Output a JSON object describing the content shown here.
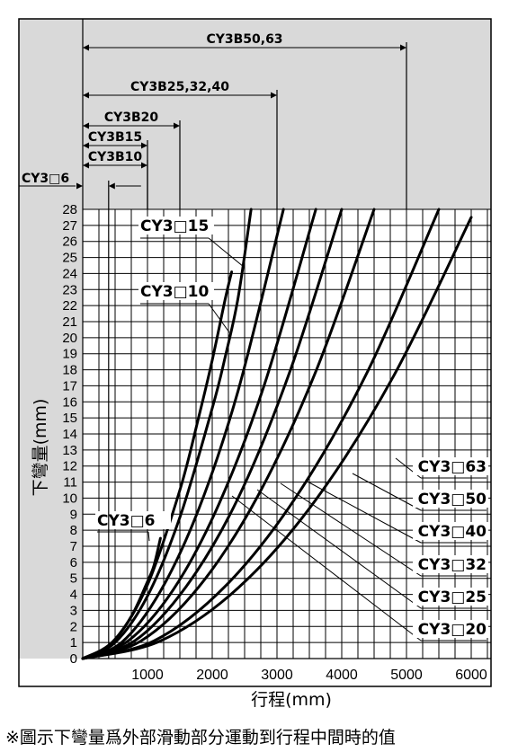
{
  "chart_data": {
    "type": "line",
    "title": "",
    "xlabel": "行程(mm)",
    "ylabel": "下彎量(mm)",
    "xlim": [
      0,
      6500
    ],
    "ylim": [
      0,
      28
    ],
    "x_ticks": [
      1000,
      2000,
      3000,
      4000,
      5000,
      6000
    ],
    "x_tick_labels": [
      "1000",
      "2000",
      "3000",
      "4000",
      "5000",
      "6000"
    ],
    "y_ticks": [
      0,
      1,
      2,
      3,
      4,
      5,
      6,
      7,
      8,
      9,
      10,
      11,
      12,
      13,
      14,
      15,
      16,
      17,
      18,
      19,
      20,
      21,
      22,
      23,
      24,
      25,
      26,
      27,
      28
    ],
    "grid": true,
    "series": [
      {
        "name": "CY3□6",
        "x": [
          0,
          200,
          400,
          600,
          800,
          1000,
          1100,
          1200
        ],
        "y": [
          0,
          0.2,
          0.8,
          1.7,
          3.0,
          4.8,
          5.8,
          7.5
        ]
      },
      {
        "name": "CY3□10",
        "x": [
          0,
          500,
          1000,
          1500,
          1800,
          2000,
          2200,
          2300
        ],
        "y": [
          0,
          1.2,
          4.6,
          10.5,
          15.2,
          18.6,
          22.4,
          24.1
        ]
      },
      {
        "name": "CY3□15",
        "x": [
          0,
          500,
          1000,
          1500,
          2000,
          2200,
          2400,
          2600
        ],
        "y": [
          0,
          1.0,
          3.9,
          8.8,
          15.6,
          18.8,
          22.5,
          28
        ]
      },
      {
        "name": "CY3□20",
        "x": [
          0,
          600,
          1200,
          1800,
          2400,
          3100
        ],
        "y": [
          0,
          1.0,
          4.2,
          9.4,
          16.7,
          28
        ]
      },
      {
        "name": "CY3□25",
        "x": [
          0,
          700,
          1400,
          2100,
          2800,
          3600
        ],
        "y": [
          0,
          1.1,
          4.3,
          9.6,
          17.0,
          28
        ]
      },
      {
        "name": "CY3□32",
        "x": [
          0,
          800,
          1600,
          2400,
          3200,
          4000
        ],
        "y": [
          0,
          1.1,
          4.5,
          10.0,
          17.9,
          28
        ]
      },
      {
        "name": "CY3□40",
        "x": [
          0,
          900,
          1800,
          2700,
          3600,
          4500
        ],
        "y": [
          0,
          1.1,
          4.5,
          10.1,
          17.9,
          28
        ]
      },
      {
        "name": "CY3□50",
        "x": [
          0,
          1100,
          2200,
          3300,
          4400,
          5500
        ],
        "y": [
          0,
          1.1,
          4.5,
          10.1,
          17.9,
          28
        ]
      },
      {
        "name": "CY3□63",
        "x": [
          0,
          1200,
          2400,
          3600,
          4800,
          6000
        ],
        "y": [
          0,
          1.1,
          4.4,
          9.9,
          17.6,
          27.5
        ]
      }
    ],
    "series_labels": [
      "CY3□6",
      "CY3□10",
      "CY3□15",
      "CY3□63",
      "CY3□50",
      "CY3□40",
      "CY3□32",
      "CY3□25",
      "CY3□20"
    ],
    "range_annotations": [
      {
        "label": "CY3□6",
        "end": 400
      },
      {
        "label": "CY3B10",
        "end": 1000
      },
      {
        "label": "CY3B15",
        "end": 1000
      },
      {
        "label": "CY3B20",
        "end": 1500
      },
      {
        "label": "CY3B25,32,40",
        "end": 3000
      },
      {
        "label": "CY3B50,63",
        "end": 5000
      }
    ]
  },
  "footnote": "※圖示下彎量爲外部滑動部分運動到行程中間時的值"
}
